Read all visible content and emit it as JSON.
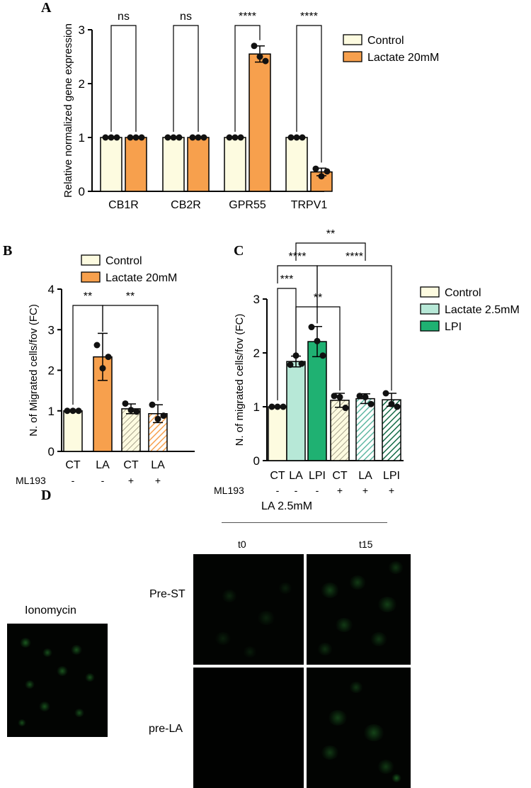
{
  "panels": {
    "A": {
      "letter": "A"
    },
    "B": {
      "letter": "B"
    },
    "C": {
      "letter": "C"
    },
    "D": {
      "letter": "D"
    }
  },
  "colors": {
    "control": "#fdfbe0",
    "lactate20": "#f7a04d",
    "lactate25": "#b7e8d7",
    "lpi": "#1fb172",
    "lactate25_hatch": "#5fb8a3",
    "lpi_hatch": "#116a45"
  },
  "chart_data": [
    {
      "id": "A",
      "type": "bar",
      "categories": [
        "CB1R",
        "CB2R",
        "GPR55",
        "TRPV1"
      ],
      "series": [
        {
          "name": "Control",
          "values": [
            1,
            1,
            1,
            1
          ],
          "errors": [
            0,
            0,
            0,
            0
          ],
          "points": [
            [
              1,
              1,
              1
            ],
            [
              1,
              1,
              1
            ],
            [
              1,
              1,
              1
            ],
            [
              1,
              1,
              1
            ]
          ]
        },
        {
          "name": "Lactate 20mM",
          "values": [
            1,
            1,
            2.55,
            0.36
          ],
          "errors": [
            0,
            0,
            0.15,
            0.07
          ],
          "points": [
            [
              1,
              1,
              1
            ],
            [
              1,
              1,
              1
            ],
            [
              2.7,
              2.5,
              2.42
            ],
            [
              0.42,
              0.28,
              0.37
            ]
          ]
        }
      ],
      "ylabel": "Relative normalized gene expression",
      "xlabel": "",
      "ylim": [
        0,
        3
      ],
      "yticks": [
        "0",
        "1",
        "2",
        "3"
      ],
      "significance": [
        "ns",
        "ns",
        "****",
        "****"
      ],
      "legend": {
        "position": "right",
        "entries": [
          "Control",
          "Lactate 20mM"
        ]
      }
    },
    {
      "id": "B",
      "type": "bar",
      "categories": [
        "CT",
        "LA",
        "CT",
        "LA"
      ],
      "ml193_label": "ML193",
      "ml193": [
        "-",
        "-",
        "+",
        "+"
      ],
      "values": [
        1.0,
        2.33,
        1.05,
        0.93
      ],
      "errors": [
        0,
        0.58,
        0.12,
        0.22
      ],
      "points": [
        [
          1,
          1,
          1
        ],
        [
          2.62,
          2.05,
          2.33
        ],
        [
          1.18,
          1.02,
          0.98
        ],
        [
          1.15,
          0.8,
          0.88
        ]
      ],
      "ylabel": "N. of Migrated cells/fov (FC)",
      "ylim": [
        0,
        4
      ],
      "yticks": [
        "0",
        "1",
        "2",
        "3",
        "4"
      ],
      "significance": [
        {
          "from": 0,
          "to": 1,
          "label": "**"
        },
        {
          "from": 1,
          "to": 3,
          "label": "**"
        }
      ],
      "legend": {
        "position": "top",
        "entries": [
          "Control",
          "Lactate 20mM"
        ]
      }
    },
    {
      "id": "C",
      "type": "bar",
      "categories": [
        "CT",
        "LA",
        "LPI",
        "CT",
        "LA",
        "LPI"
      ],
      "ml193_label": "ML193",
      "ml193": [
        "-",
        "-",
        "-",
        "+",
        "+",
        "+"
      ],
      "values": [
        1.0,
        1.84,
        2.21,
        1.12,
        1.15,
        1.13
      ],
      "errors": [
        0,
        0.1,
        0.28,
        0.13,
        0.09,
        0.12
      ],
      "points": [
        [
          1,
          1,
          1
        ],
        [
          1.78,
          1.95,
          1.8
        ],
        [
          2.48,
          2.22,
          1.95
        ],
        [
          1.2,
          1.18,
          0.98
        ],
        [
          1.2,
          1.18,
          1.05
        ],
        [
          1.25,
          1.05,
          1.0
        ]
      ],
      "ylabel": "N. of migrated cells/fov (FC)",
      "ylim": [
        0,
        3
      ],
      "yticks": [
        "0",
        "1",
        "2",
        "3"
      ],
      "significance": [
        {
          "from": 0,
          "to": 1,
          "label": "***"
        },
        {
          "from": 1,
          "to": 3,
          "label": "**"
        },
        {
          "from": 0,
          "to": 2,
          "label": "****"
        },
        {
          "from": 2,
          "to": 5,
          "label": "****"
        },
        {
          "from": 1,
          "to": 4,
          "label": "**"
        }
      ],
      "legend": {
        "position": "right",
        "entries": [
          "Control",
          "Lactate 2.5mM",
          "LPI"
        ]
      }
    }
  ],
  "imaging": {
    "header": "LA 2.5mM",
    "time_labels": [
      "t0",
      "t15"
    ],
    "row_labels": [
      "Pre-ST",
      "pre-LA"
    ],
    "ionomycin_label": "Ionomycin"
  }
}
